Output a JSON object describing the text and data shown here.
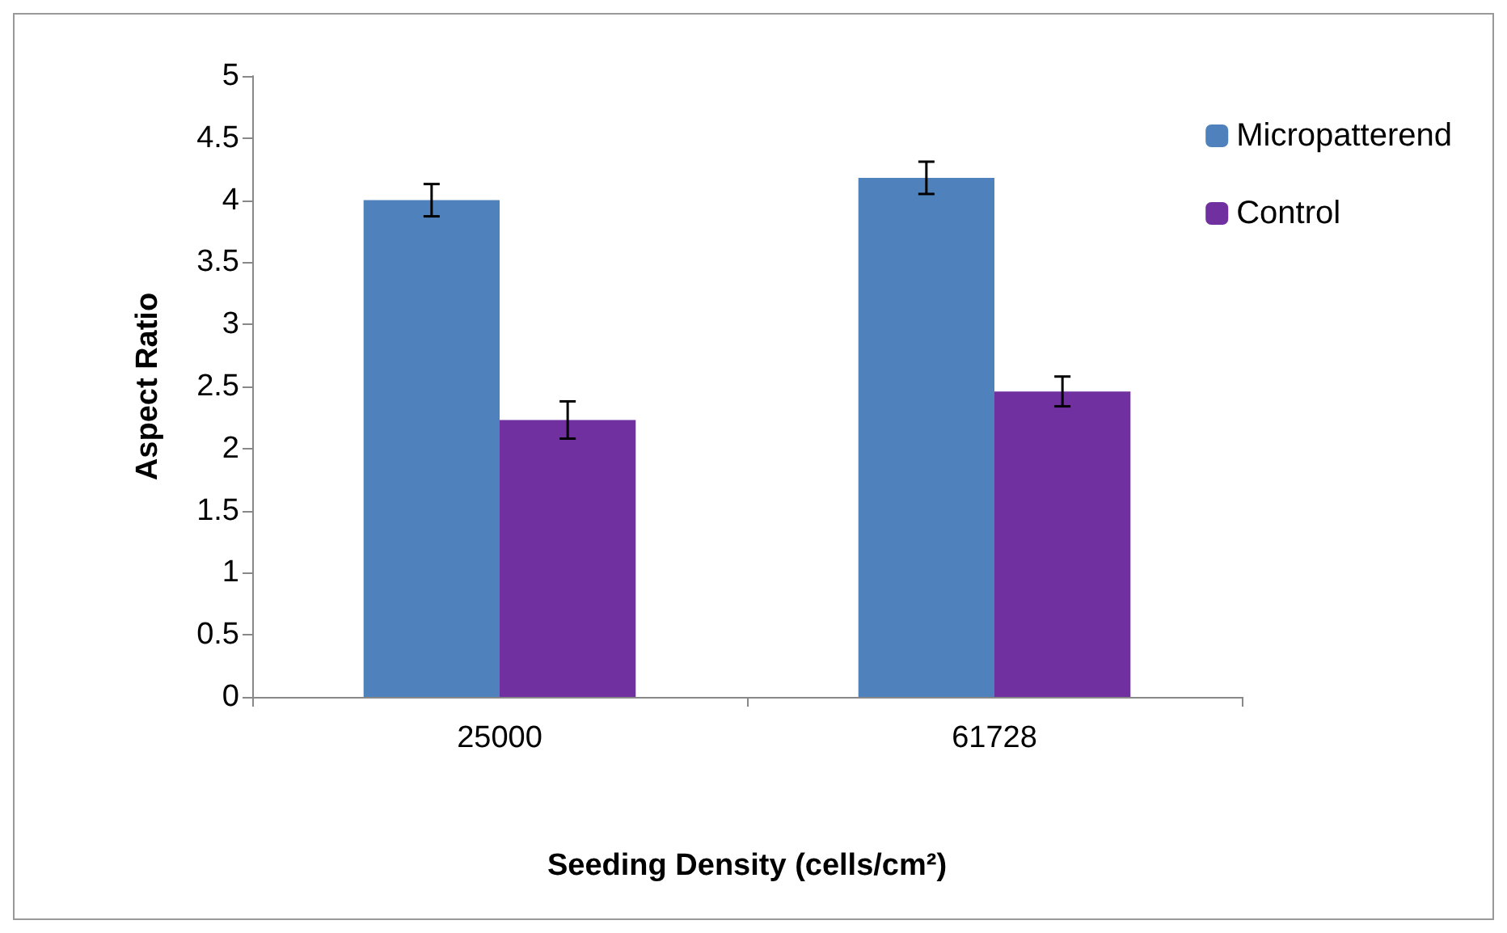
{
  "chart_data": {
    "type": "bar",
    "xlabel": "Seeding Density (cells/cm²)",
    "ylabel": "Aspect Ratio",
    "categories": [
      "25000",
      "61728"
    ],
    "series": [
      {
        "name": "Micropatterend",
        "color": "#4f81bd",
        "values": [
          4.0,
          4.18
        ],
        "errors": [
          0.13,
          0.13
        ]
      },
      {
        "name": "Control",
        "color": "#7030a0",
        "values": [
          2.23,
          2.46
        ],
        "errors": [
          0.15,
          0.12
        ]
      }
    ],
    "ylim": [
      0,
      5
    ],
    "yticks": [
      0,
      0.5,
      1,
      1.5,
      2,
      2.5,
      3,
      3.5,
      4,
      4.5,
      5
    ],
    "grid": false,
    "legend": "top right"
  }
}
